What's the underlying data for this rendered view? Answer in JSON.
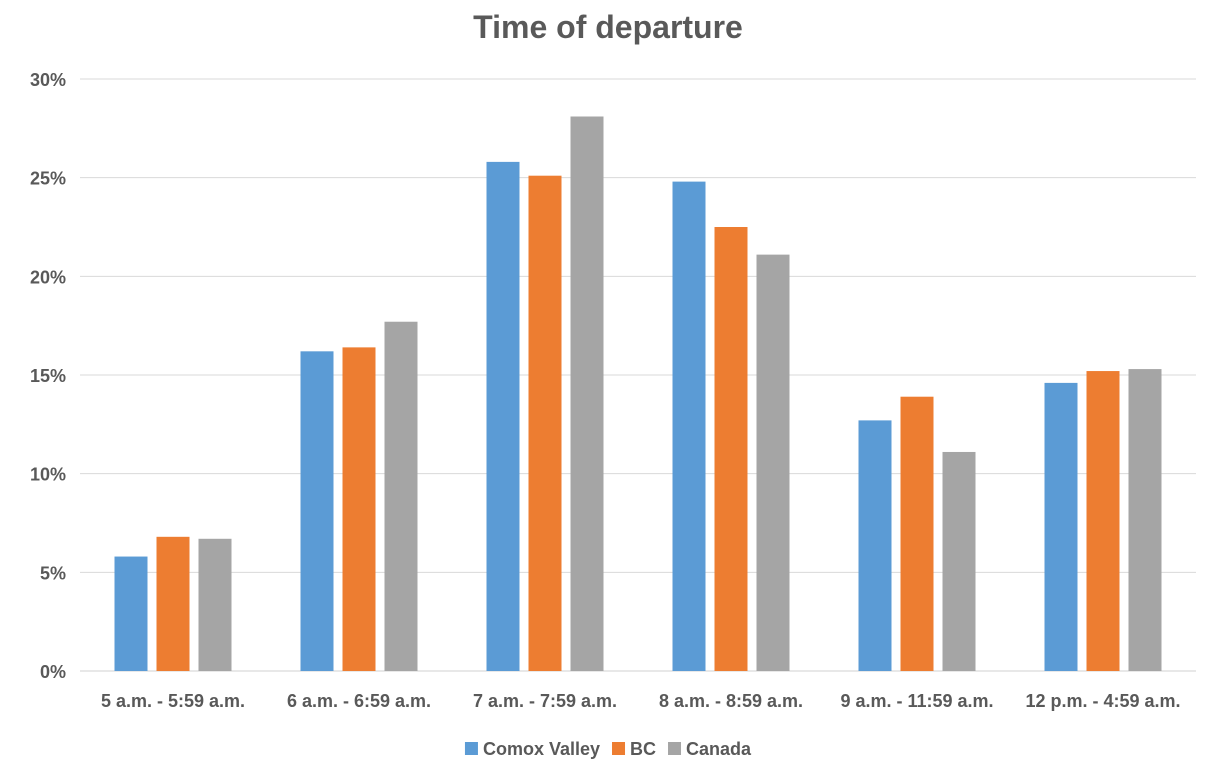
{
  "chart_data": {
    "type": "bar",
    "title": "Time of departure",
    "categories": [
      "5 a.m. - 5:59 a.m.",
      "6 a.m. - 6:59 a.m.",
      "7 a.m. - 7:59 a.m.",
      "8 a.m. - 8:59 a.m.",
      "9 a.m. - 11:59 a.m.",
      "12 p.m. - 4:59 a.m."
    ],
    "series": [
      {
        "name": "Comox Valley",
        "color": "#5B9BD5",
        "values": [
          5.8,
          16.2,
          25.8,
          24.8,
          12.7,
          14.6
        ]
      },
      {
        "name": "BC",
        "color": "#ED7D31",
        "values": [
          6.8,
          16.4,
          25.1,
          22.5,
          13.9,
          15.2
        ]
      },
      {
        "name": "Canada",
        "color": "#A5A5A5",
        "values": [
          6.7,
          17.7,
          28.1,
          21.1,
          11.1,
          15.3
        ]
      }
    ],
    "yticks": [
      "0%",
      "5%",
      "10%",
      "15%",
      "20%",
      "25%",
      "30%"
    ],
    "ytick_values": [
      0,
      5,
      10,
      15,
      20,
      25,
      30
    ],
    "ylim": [
      0,
      30
    ],
    "unit": "%",
    "grid": true,
    "legend_position": "bottom"
  }
}
